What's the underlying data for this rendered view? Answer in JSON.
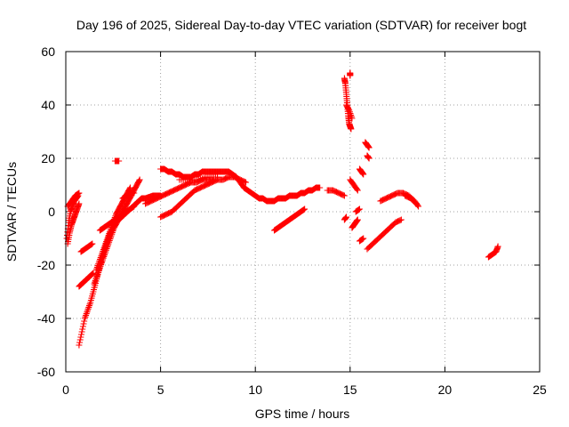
{
  "chart_data": {
    "type": "scatter",
    "title": "Day 196 of 2025, Sidereal Day-to-day VTEC variation (SDTVAR) for receiver bogt",
    "xlabel": "GPS time / hours",
    "ylabel": "SDTVAR / TECUs",
    "xlim": [
      0,
      25
    ],
    "ylim": [
      -60,
      60
    ],
    "xticks": [
      "0",
      "5",
      "10",
      "15",
      "20",
      "25"
    ],
    "yticks": [
      "-60",
      "-40",
      "-20",
      "0",
      "20",
      "40",
      "60"
    ],
    "grid": true,
    "marker": "plus",
    "color": "#ff0000",
    "series": [
      {
        "name": "",
        "x": [
          0.05,
          0.15,
          0.25,
          0.35,
          0.45,
          0.55,
          0.65
        ],
        "y": [
          -10,
          -4,
          0,
          2,
          4,
          5,
          6
        ]
      },
      {
        "name": "",
        "x": [
          0.1,
          0.2,
          0.3,
          0.4,
          0.5,
          0.6,
          0.7
        ],
        "y": [
          -12,
          -8,
          -5,
          -3,
          -1,
          1,
          3
        ]
      },
      {
        "name": "",
        "x": [
          0.1,
          0.3,
          0.5,
          0.7
        ],
        "y": [
          2,
          4,
          6,
          7
        ]
      },
      {
        "name": "",
        "x": [
          0.7,
          0.85,
          1.0,
          1.15,
          1.3,
          1.45,
          1.6,
          1.75,
          1.9,
          2.05,
          2.2,
          2.35,
          2.5,
          2.65,
          2.8,
          2.95,
          3.1,
          3.25,
          3.4,
          3.55,
          3.7,
          3.85,
          4.0,
          4.2,
          4.4,
          4.6,
          4.8,
          5.0
        ],
        "y": [
          -50,
          -45,
          -40,
          -37,
          -34,
          -30,
          -26,
          -22,
          -18,
          -14,
          -11,
          -8,
          -6,
          -4,
          -3,
          -2,
          -1,
          0,
          1,
          2,
          3,
          4,
          5,
          5,
          5.5,
          6,
          6,
          6
        ]
      },
      {
        "name": "",
        "x": [
          0.7,
          0.85,
          1.0,
          1.15,
          1.3,
          1.45
        ],
        "y": [
          -28,
          -27,
          -26,
          -25,
          -24,
          -23
        ]
      },
      {
        "name": "",
        "x": [
          0.8,
          1.0,
          1.2,
          1.4
        ],
        "y": [
          -15,
          -14,
          -13,
          -12
        ]
      },
      {
        "name": "",
        "x": [
          1.5,
          1.65,
          1.8,
          1.95,
          2.1,
          2.25,
          2.4,
          2.55,
          2.7,
          2.85,
          3.0,
          3.15,
          3.3,
          3.45,
          3.6,
          3.75,
          3.9
        ],
        "y": [
          -27,
          -24,
          -21,
          -18,
          -15,
          -12,
          -9,
          -6,
          -4,
          -2,
          0,
          2,
          4,
          6,
          8,
          10,
          12
        ]
      },
      {
        "name": "",
        "x": [
          1.6,
          1.75,
          1.9,
          2.05,
          2.2,
          2.35,
          2.5,
          2.65,
          2.8,
          2.95,
          3.1,
          3.25,
          3.4
        ],
        "y": [
          -22,
          -19,
          -16,
          -13,
          -10,
          -7,
          -4,
          -1,
          1,
          3,
          5,
          7,
          9
        ]
      },
      {
        "name": "",
        "x": [
          1.8,
          2.0,
          2.2,
          2.4,
          2.6,
          2.8,
          3.0,
          3.2,
          3.4,
          3.6
        ],
        "y": [
          -7,
          -6,
          -5,
          -4,
          -3,
          -2,
          -1,
          0,
          1,
          2
        ]
      },
      {
        "name": "",
        "x": [
          2.6,
          2.8
        ],
        "y": [
          19,
          19
        ]
      },
      {
        "name": "",
        "x": [
          3.0,
          3.2,
          3.4,
          3.6
        ],
        "y": [
          5,
          6,
          7,
          7
        ]
      },
      {
        "name": "",
        "x": [
          5.0,
          5.3,
          5.6,
          5.9,
          6.2,
          6.5,
          6.8,
          7.1,
          7.4,
          7.7,
          8.0,
          8.3,
          8.6,
          8.9,
          9.2,
          9.5
        ],
        "y": [
          -2,
          -1,
          0,
          2,
          4,
          6,
          8,
          9,
          10,
          11,
          12,
          12,
          13,
          13,
          12,
          11
        ]
      },
      {
        "name": "",
        "x": [
          4.2,
          4.5,
          4.8,
          5.1,
          5.4,
          5.7,
          6.0,
          6.3,
          6.6,
          6.9,
          7.2,
          7.5,
          7.8
        ],
        "y": [
          3,
          4,
          5,
          6,
          7,
          8,
          9,
          10,
          11,
          11,
          12,
          12,
          12
        ]
      },
      {
        "name": "",
        "x": [
          5.0,
          5.2,
          5.4,
          5.6,
          5.8,
          6.0,
          6.2,
          6.4,
          6.6,
          6.8,
          7.0,
          7.2,
          7.4,
          7.6,
          7.8,
          8.0,
          8.2,
          8.4,
          8.6,
          8.8,
          9.0,
          9.2,
          9.4,
          9.6,
          9.8,
          10.0,
          10.2,
          10.4,
          10.6,
          10.8,
          11.0,
          11.2,
          11.4,
          11.6,
          11.8,
          12.0,
          12.2,
          12.4,
          12.6,
          12.8,
          13.0,
          13.2,
          13.4
        ],
        "y": [
          16,
          16,
          15,
          15,
          14,
          14,
          13,
          13,
          13,
          14,
          14,
          15,
          15,
          15,
          15,
          15,
          15,
          15,
          15,
          14,
          13,
          11,
          9,
          8,
          7,
          6,
          5,
          5,
          4,
          4,
          4,
          5,
          5,
          5,
          6,
          6,
          6,
          7,
          7,
          8,
          8,
          9,
          9
        ]
      },
      {
        "name": "",
        "x": [
          6.0,
          6.5,
          7.0,
          7.5,
          8.0
        ],
        "y": [
          12,
          12,
          12,
          13,
          13
        ]
      },
      {
        "name": "",
        "x": [
          11.0,
          11.2,
          11.4,
          11.6,
          11.8,
          12.0,
          12.2,
          12.4,
          12.6
        ],
        "y": [
          -7,
          -6,
          -5,
          -4,
          -3,
          -2,
          -1,
          0,
          1
        ]
      },
      {
        "name": "",
        "x": [
          13.8,
          14.1,
          14.4,
          14.7
        ],
        "y": [
          8,
          8,
          7,
          6
        ]
      },
      {
        "name": "",
        "x": [
          14.7,
          14.75,
          14.8,
          14.85,
          14.9,
          14.95,
          15.0,
          15.05
        ],
        "y": [
          50,
          48,
          44,
          40,
          36,
          33,
          32,
          31
        ]
      },
      {
        "name": "",
        "x": [
          15.0,
          15.0
        ],
        "y": [
          52,
          51
        ]
      },
      {
        "name": "",
        "x": [
          14.8,
          14.95,
          15.1
        ],
        "y": [
          40,
          38,
          35
        ]
      },
      {
        "name": "",
        "x": [
          14.7,
          14.8
        ],
        "y": [
          -3,
          -2
        ]
      },
      {
        "name": "",
        "x": [
          15.1,
          15.2,
          15.3,
          15.4
        ],
        "y": [
          -6,
          -5,
          -4,
          -3
        ]
      },
      {
        "name": "",
        "x": [
          15.0,
          15.2,
          15.4
        ],
        "y": [
          12,
          10,
          8
        ]
      },
      {
        "name": "",
        "x": [
          15.3,
          15.5
        ],
        "y": [
          0,
          1
        ]
      },
      {
        "name": "",
        "x": [
          15.5,
          15.7
        ],
        "y": [
          -11,
          -10
        ]
      },
      {
        "name": "",
        "x": [
          15.5,
          15.6,
          15.7
        ],
        "y": [
          16,
          15,
          14
        ]
      },
      {
        "name": "",
        "x": [
          15.8,
          15.9,
          16.0
        ],
        "y": [
          26,
          25,
          24
        ]
      },
      {
        "name": "",
        "x": [
          15.9,
          16.0
        ],
        "y": [
          21,
          20
        ]
      },
      {
        "name": "",
        "x": [
          15.9,
          16.2,
          16.5,
          16.8,
          17.1,
          17.4,
          17.7
        ],
        "y": [
          -14,
          -12,
          -10,
          -8,
          -6,
          -4,
          -3
        ]
      },
      {
        "name": "",
        "x": [
          16.6,
          16.9,
          17.2,
          17.5,
          17.8,
          18.1,
          18.4,
          18.6
        ],
        "y": [
          4,
          5,
          6,
          7,
          7,
          6,
          4,
          2
        ]
      },
      {
        "name": "",
        "x": [
          17.9,
          18.2,
          18.5
        ],
        "y": [
          6,
          5,
          3
        ]
      },
      {
        "name": "",
        "x": [
          22.3,
          22.5,
          22.7,
          22.8
        ],
        "y": [
          -17,
          -16,
          -15,
          -13
        ]
      }
    ]
  }
}
